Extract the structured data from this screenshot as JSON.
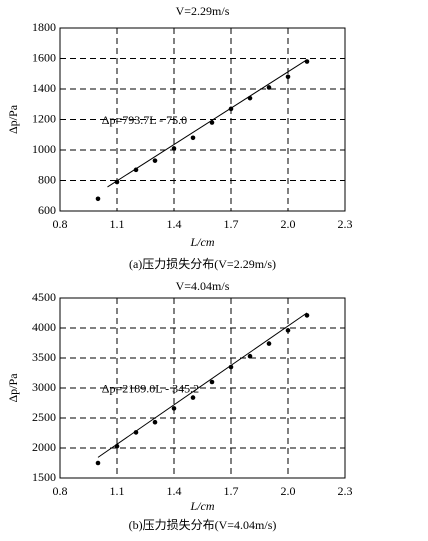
{
  "chart_data": [
    {
      "type": "scatter",
      "title": "V=2.29m/s",
      "x_label": "L/cm",
      "y_label": "Δp/Pa",
      "annotation": "Δp=793.7L - 75.0",
      "caption": "(a)压力损失分布(V=2.29m/s)",
      "x": [
        1.0,
        1.1,
        1.2,
        1.3,
        1.4,
        1.5,
        1.6,
        1.7,
        1.8,
        1.9,
        2.0,
        2.1
      ],
      "values": [
        680,
        790,
        870,
        930,
        1010,
        1080,
        1180,
        1270,
        1340,
        1410,
        1480,
        1580
      ],
      "trendline": {
        "x": [
          1.05,
          2.1
        ],
        "values": [
          758,
          1592
        ]
      },
      "color": "#000000",
      "xlim": [
        0.8,
        2.3
      ],
      "xticks": [
        0.8,
        1.1,
        1.4,
        1.7,
        {
          "value": 2,
          "label": "2.0"
        },
        2.3
      ],
      "ylim": [
        600,
        1800
      ],
      "yticks": [
        600,
        800,
        1000,
        1200,
        1400,
        1600,
        1800
      ],
      "grid": true
    },
    {
      "type": "scatter",
      "title": "V=4.04m/s",
      "x_label": "L/cm",
      "y_label": "Δp/Pa",
      "annotation": "Δp=2189.0L - 345.2",
      "caption": "(b)压力损失分布(V=4.04m/s)",
      "x": [
        1.0,
        1.1,
        1.2,
        1.3,
        1.4,
        1.5,
        1.6,
        1.7,
        1.8,
        1.9,
        2.0,
        2.1
      ],
      "values": [
        1750,
        2030,
        2260,
        2430,
        2660,
        2840,
        3100,
        3350,
        3530,
        3740,
        3960,
        4210
      ],
      "trendline": {
        "x": [
          1.0,
          2.1
        ],
        "values": [
          1844,
          4252
        ]
      },
      "color": "#000000",
      "xlim": [
        0.8,
        2.3
      ],
      "xticks": [
        0.8,
        1.1,
        1.4,
        1.7,
        {
          "value": 2,
          "label": "2.0"
        },
        2.3
      ],
      "ylim": [
        1500,
        4500
      ],
      "yticks": [
        1500,
        2000,
        2500,
        3000,
        3500,
        4000,
        4500
      ],
      "grid": true
    }
  ]
}
